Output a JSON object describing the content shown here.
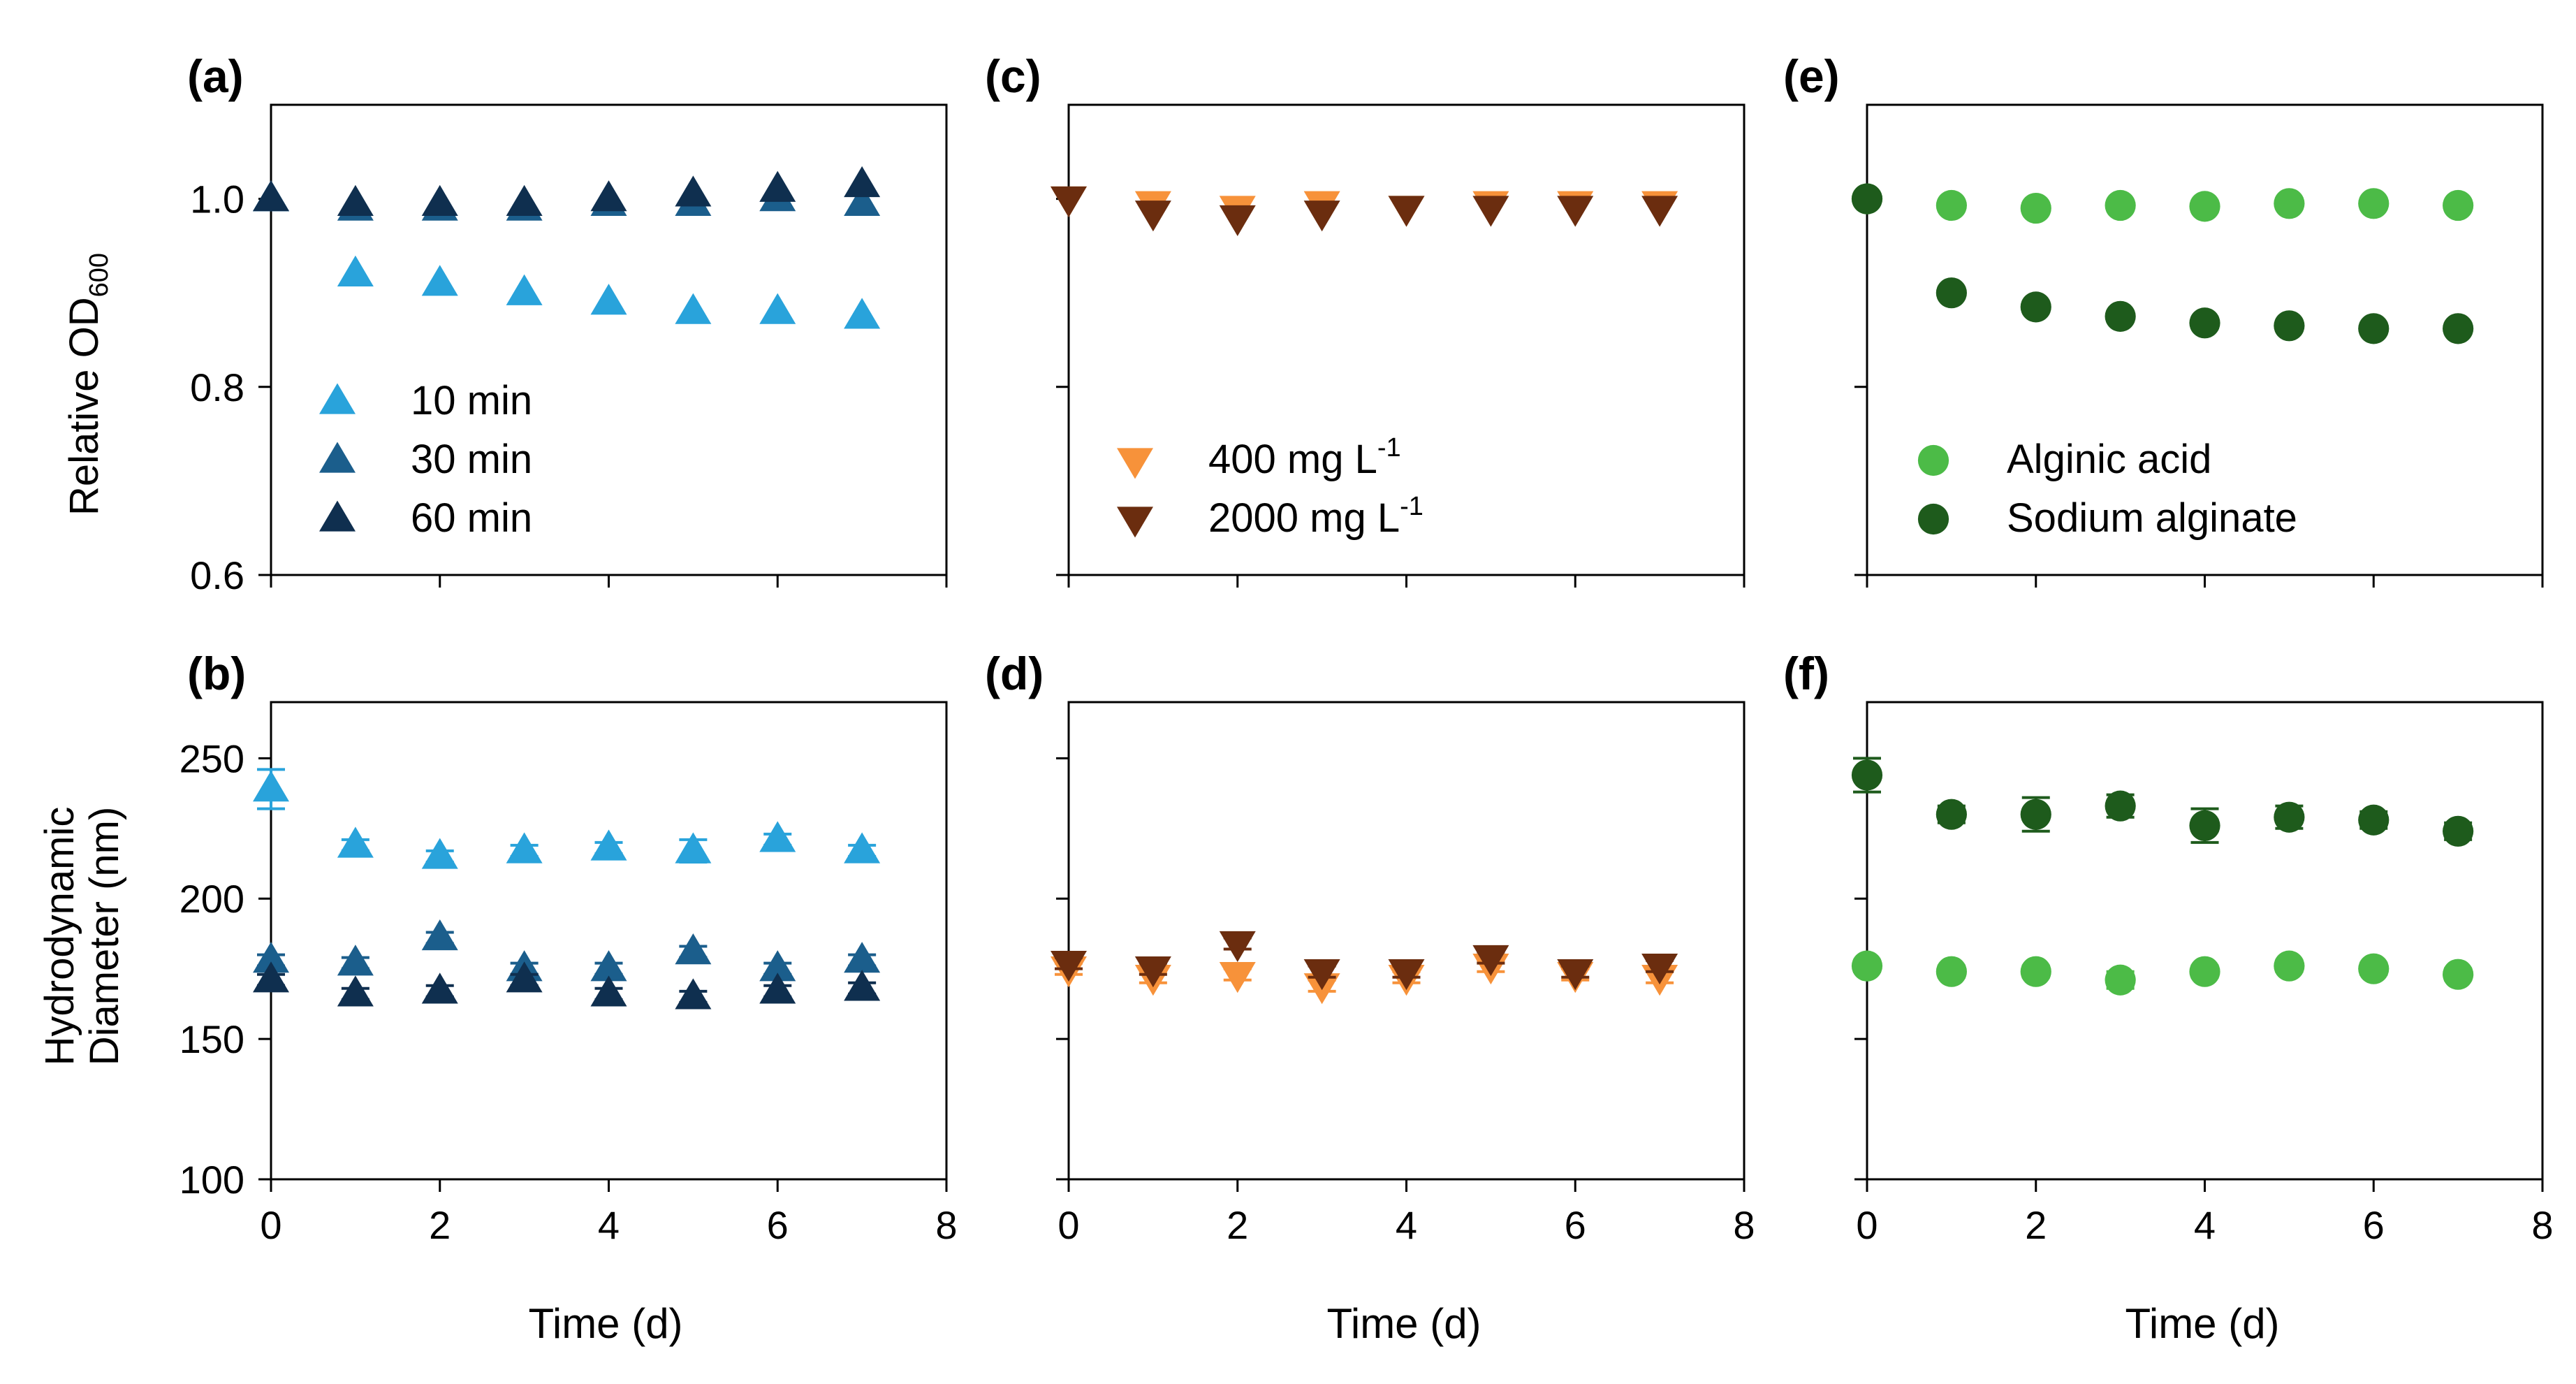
{
  "figure": {
    "x_axis_label": "Time (d)",
    "top_y_label_main": "Relative OD",
    "top_y_label_sub": "600",
    "bottom_y_label_line1": "Hydrodynamic",
    "bottom_y_label_line2": "Diameter (nm)"
  },
  "chart_data": [
    {
      "panel": "(a)",
      "type": "scatter",
      "marker": "triangle-up",
      "xlabel": "Time (d)",
      "ylabel": "Relative OD600",
      "xlim": [
        0,
        8
      ],
      "ylim": [
        0.6,
        1.1
      ],
      "xticks": [
        0,
        2,
        4,
        6,
        8
      ],
      "yticks": [
        0.6,
        0.8,
        1.0
      ],
      "ytick_labels": [
        "0.6",
        "0.8",
        "1.0"
      ],
      "show_xtick_labels": false,
      "show_ytick_labels": true,
      "legend_position": "bottom-left",
      "series": [
        {
          "name": "10 min",
          "color": "#29a3db",
          "x": [
            0,
            1,
            2,
            3,
            4,
            5,
            6,
            7
          ],
          "y": [
            1.0,
            0.92,
            0.91,
            0.9,
            0.89,
            0.88,
            0.88,
            0.875
          ],
          "err": [
            0,
            0,
            0,
            0,
            0,
            0,
            0,
            0
          ]
        },
        {
          "name": "30 min",
          "color": "#1b5e8c",
          "x": [
            0,
            1,
            2,
            3,
            4,
            5,
            6,
            7
          ],
          "y": [
            1.0,
            0.99,
            0.99,
            0.99,
            0.995,
            0.995,
            1.0,
            0.995
          ],
          "err": [
            0,
            0,
            0,
            0,
            0,
            0,
            0,
            0
          ]
        },
        {
          "name": "60 min",
          "color": "#0f2f4f",
          "x": [
            0,
            1,
            2,
            3,
            4,
            5,
            6,
            7
          ],
          "y": [
            1.0,
            0.995,
            0.995,
            0.995,
            1.0,
            1.005,
            1.01,
            1.015
          ],
          "err": [
            0,
            0,
            0,
            0,
            0,
            0,
            0,
            0
          ]
        }
      ]
    },
    {
      "panel": "(c)",
      "type": "scatter",
      "marker": "triangle-down",
      "xlabel": "Time (d)",
      "ylabel": "",
      "xlim": [
        0,
        8
      ],
      "ylim": [
        0.6,
        1.1
      ],
      "xticks": [
        0,
        2,
        4,
        6,
        8
      ],
      "yticks": [
        0.6,
        0.8,
        1.0
      ],
      "show_xtick_labels": false,
      "show_ytick_labels": false,
      "legend_position": "bottom-left",
      "series": [
        {
          "name": "400 mg L",
          "name_sup": "-1",
          "color": "#f7923a",
          "x": [
            0,
            1,
            2,
            3,
            4,
            5,
            6,
            7
          ],
          "y": [
            1.0,
            0.995,
            0.99,
            0.995,
            0.99,
            0.995,
            0.995,
            0.995
          ],
          "err": [
            0,
            0,
            0,
            0,
            0,
            0,
            0,
            0
          ]
        },
        {
          "name": "2000 mg L",
          "name_sup": "-1",
          "color": "#6b2d0f",
          "x": [
            0,
            1,
            2,
            3,
            4,
            5,
            6,
            7
          ],
          "y": [
            1.0,
            0.985,
            0.98,
            0.985,
            0.99,
            0.99,
            0.99,
            0.99
          ],
          "err": [
            0,
            0,
            0,
            0,
            0,
            0,
            0,
            0
          ]
        }
      ]
    },
    {
      "panel": "(e)",
      "type": "scatter",
      "marker": "circle",
      "xlabel": "Time (d)",
      "ylabel": "",
      "xlim": [
        0,
        8
      ],
      "ylim": [
        0.6,
        1.1
      ],
      "xticks": [
        0,
        2,
        4,
        6,
        8
      ],
      "yticks": [
        0.6,
        0.8,
        1.0
      ],
      "show_xtick_labels": false,
      "show_ytick_labels": false,
      "legend_position": "bottom-left",
      "series": [
        {
          "name": "Alginic acid",
          "color": "#4cbb47",
          "x": [
            0,
            1,
            2,
            3,
            4,
            5,
            6,
            7
          ],
          "y": [
            1.0,
            0.993,
            0.99,
            0.993,
            0.992,
            0.995,
            0.995,
            0.993
          ],
          "err": [
            0,
            0,
            0,
            0,
            0,
            0,
            0,
            0
          ]
        },
        {
          "name": "Sodium alginate",
          "color": "#1e5b1c",
          "x": [
            0,
            1,
            2,
            3,
            4,
            5,
            6,
            7
          ],
          "y": [
            1.0,
            0.9,
            0.885,
            0.875,
            0.868,
            0.865,
            0.862,
            0.862
          ],
          "err": [
            0,
            0,
            0,
            0,
            0,
            0,
            0,
            0
          ]
        }
      ]
    },
    {
      "panel": "(b)",
      "type": "scatter",
      "marker": "triangle-up",
      "xlabel": "Time (d)",
      "ylabel": "Hydrodynamic Diameter (nm)",
      "xlim": [
        0,
        8
      ],
      "ylim": [
        100,
        270
      ],
      "xticks": [
        0,
        2,
        4,
        6,
        8
      ],
      "yticks": [
        100,
        150,
        200,
        250
      ],
      "xtick_labels": [
        "0",
        "2",
        "4",
        "6",
        "8"
      ],
      "ytick_labels": [
        "100",
        "150",
        "200",
        "250"
      ],
      "show_xtick_labels": true,
      "show_ytick_labels": true,
      "series": [
        {
          "name": "10 min",
          "color": "#29a3db",
          "x": [
            0,
            1,
            2,
            3,
            4,
            5,
            6,
            7
          ],
          "y": [
            239,
            219,
            215,
            217,
            218,
            217,
            221,
            217
          ],
          "err": [
            7,
            2,
            2,
            2,
            2,
            4,
            2,
            2
          ]
        },
        {
          "name": "30 min",
          "color": "#1b5e8c",
          "x": [
            0,
            1,
            2,
            3,
            4,
            5,
            6,
            7
          ],
          "y": [
            178,
            177,
            186,
            175,
            175,
            181,
            175,
            178
          ],
          "err": [
            2,
            2,
            2,
            2,
            2,
            2,
            2,
            2
          ]
        },
        {
          "name": "60 min",
          "color": "#0f2f4f",
          "x": [
            0,
            1,
            2,
            3,
            4,
            5,
            6,
            7
          ],
          "y": [
            171,
            166,
            167,
            171,
            166,
            165,
            167,
            168
          ],
          "err": [
            2,
            2,
            2,
            2,
            2,
            2,
            2,
            2
          ]
        }
      ]
    },
    {
      "panel": "(d)",
      "type": "scatter",
      "marker": "triangle-down",
      "xlabel": "Time (d)",
      "ylabel": "",
      "xlim": [
        0,
        8
      ],
      "ylim": [
        100,
        270
      ],
      "xticks": [
        0,
        2,
        4,
        6,
        8
      ],
      "yticks": [
        100,
        150,
        200,
        250
      ],
      "xtick_labels": [
        "0",
        "2",
        "4",
        "6",
        "8"
      ],
      "show_xtick_labels": true,
      "show_ytick_labels": false,
      "series": [
        {
          "name": "400 mg L",
          "name_sup": "-1",
          "color": "#f7923a",
          "x": [
            0,
            1,
            2,
            3,
            4,
            5,
            6,
            7
          ],
          "y": [
            175,
            172,
            173,
            169,
            172,
            176,
            173,
            172
          ],
          "err": [
            2,
            2,
            2,
            2,
            2,
            2,
            2,
            2
          ]
        },
        {
          "name": "2000 mg L",
          "name_sup": "-1",
          "color": "#6b2d0f",
          "x": [
            0,
            1,
            2,
            3,
            4,
            5,
            6,
            7
          ],
          "y": [
            177,
            175,
            184,
            174,
            174,
            179,
            174,
            176
          ],
          "err": [
            2,
            2,
            2,
            2,
            2,
            2,
            2,
            2
          ]
        }
      ]
    },
    {
      "panel": "(f)",
      "type": "scatter",
      "marker": "circle",
      "xlabel": "Time (d)",
      "ylabel": "",
      "xlim": [
        0,
        8
      ],
      "ylim": [
        100,
        270
      ],
      "xticks": [
        0,
        2,
        4,
        6,
        8
      ],
      "yticks": [
        100,
        150,
        200,
        250
      ],
      "xtick_labels": [
        "0",
        "2",
        "4",
        "6",
        "8"
      ],
      "show_xtick_labels": true,
      "show_ytick_labels": false,
      "series": [
        {
          "name": "Alginic acid",
          "color": "#4cbb47",
          "x": [
            0,
            1,
            2,
            3,
            4,
            5,
            6,
            7
          ],
          "y": [
            176,
            174,
            174,
            171,
            174,
            176,
            175,
            173
          ],
          "err": [
            2,
            2,
            2,
            3,
            2,
            2,
            2,
            2
          ]
        },
        {
          "name": "Sodium alginate",
          "color": "#1e5b1c",
          "x": [
            0,
            1,
            2,
            3,
            4,
            5,
            6,
            7
          ],
          "y": [
            244,
            230,
            230,
            233,
            226,
            229,
            228,
            224
          ],
          "err": [
            6,
            3,
            6,
            4,
            6,
            4,
            3,
            3
          ]
        }
      ]
    }
  ]
}
